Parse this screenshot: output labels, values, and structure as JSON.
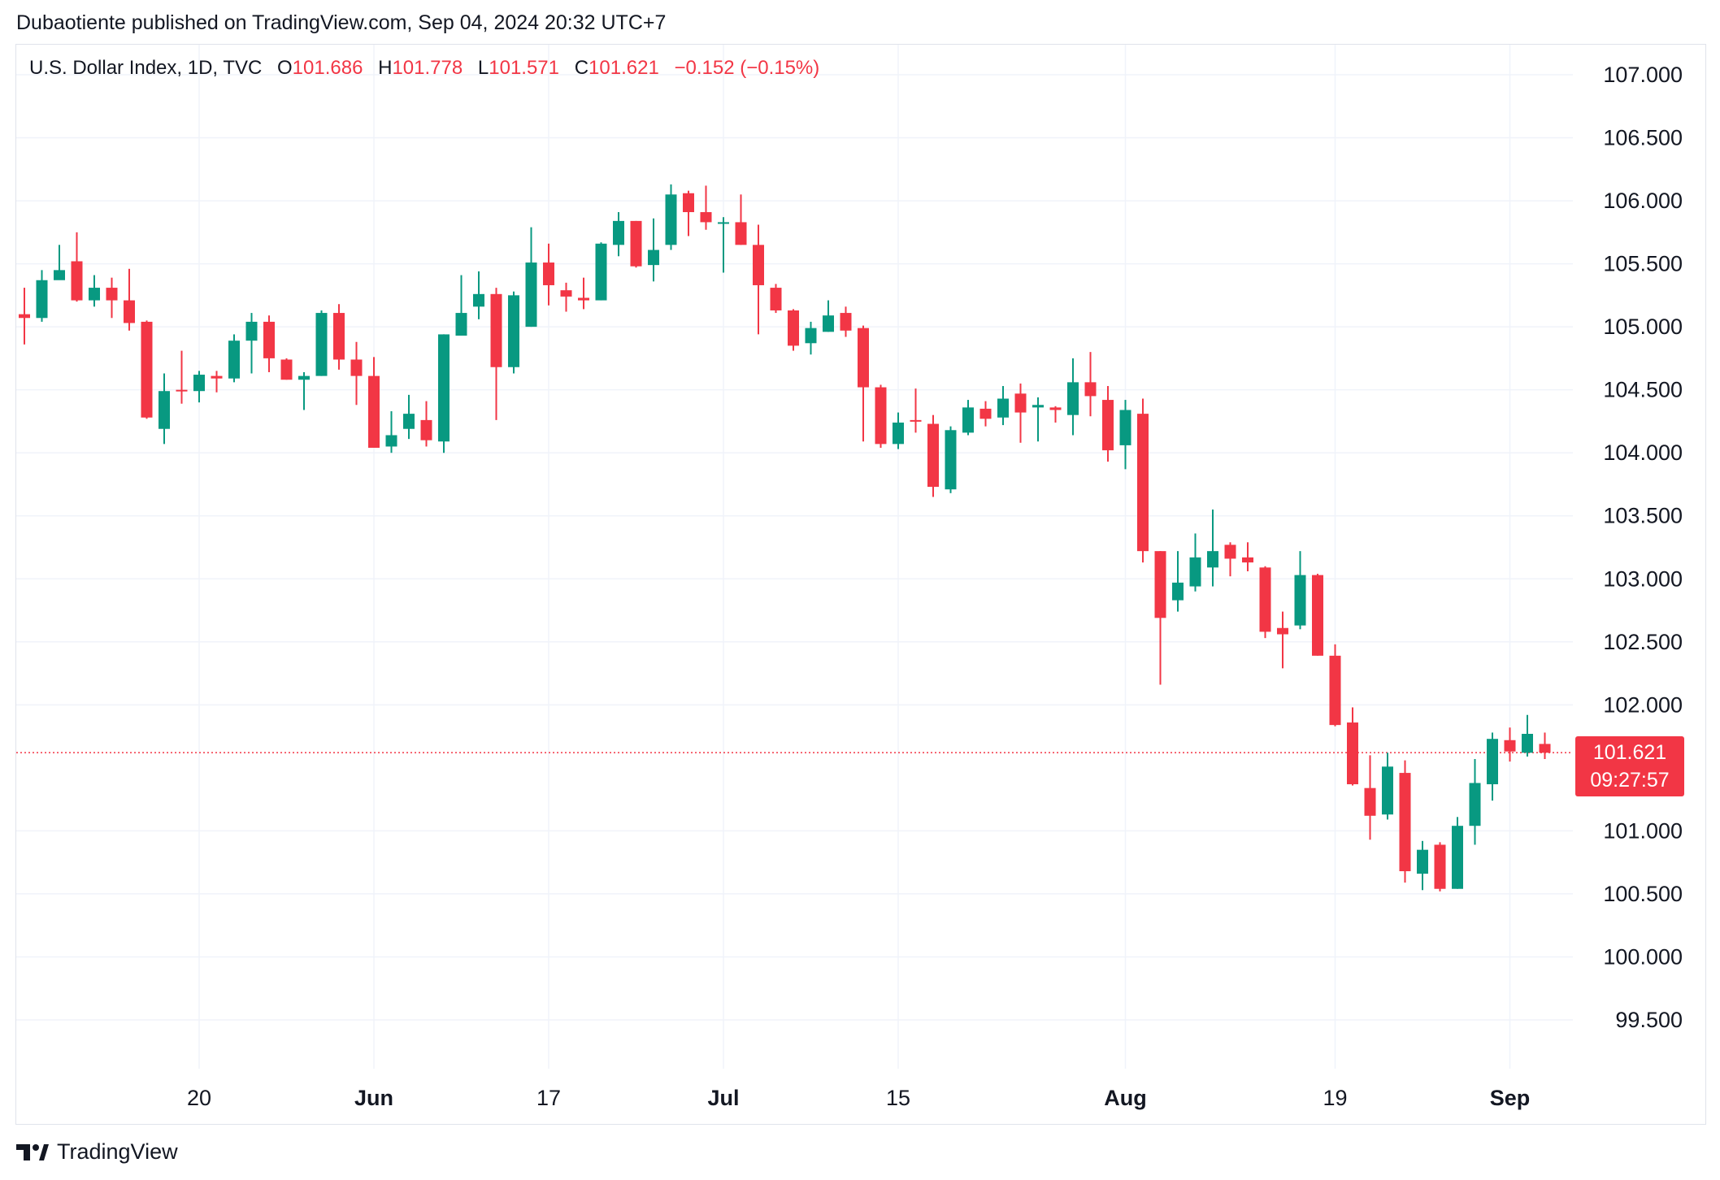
{
  "header": {
    "published_line": "Dubaotiente published on TradingView.com, Sep 04, 2024 20:32 UTC+7"
  },
  "legend": {
    "symbol": "U.S. Dollar Index, 1D, TVC",
    "open_label": "O",
    "open_value": "101.686",
    "high_label": "H",
    "high_value": "101.778",
    "low_label": "L",
    "low_value": "101.571",
    "close_label": "C",
    "close_value": "101.621",
    "change": "−0.152 (−0.15%)"
  },
  "price_tag": {
    "price": "101.621",
    "countdown": "09:27:57"
  },
  "footer": {
    "brand": "TradingView"
  },
  "colors": {
    "up": "#089981",
    "down": "#f23645",
    "grid": "#f0f3fa",
    "text": "#131722",
    "price_line": "#f23645"
  },
  "chart_data": {
    "type": "candlestick",
    "ylim": [
      99.05,
      107.25
    ],
    "y_ticks": [
      "107.000",
      "106.500",
      "106.000",
      "105.500",
      "105.000",
      "104.500",
      "104.000",
      "103.500",
      "103.000",
      "102.500",
      "102.000",
      "101.000",
      "100.500",
      "100.000",
      "99.500"
    ],
    "x_ticks": [
      {
        "label": "20",
        "index": 10,
        "bold": false
      },
      {
        "label": "Jun",
        "index": 20,
        "bold": true
      },
      {
        "label": "17",
        "index": 30,
        "bold": false
      },
      {
        "label": "Jul",
        "index": 40,
        "bold": true
      },
      {
        "label": "15",
        "index": 50,
        "bold": false
      },
      {
        "label": "Aug",
        "index": 63,
        "bold": true
      },
      {
        "label": "19",
        "index": 75,
        "bold": false
      },
      {
        "label": "Sep",
        "index": 85,
        "bold": true
      }
    ],
    "last_price": 101.621,
    "candles": [
      [
        105.1,
        105.07,
        105.31,
        104.86
      ],
      [
        105.07,
        105.37,
        105.45,
        105.04
      ],
      [
        105.37,
        105.45,
        105.65,
        105.4
      ],
      [
        105.52,
        105.21,
        105.75,
        105.2
      ],
      [
        105.21,
        105.31,
        105.41,
        105.16
      ],
      [
        105.31,
        105.21,
        105.39,
        105.07
      ],
      [
        105.21,
        105.03,
        105.46,
        104.97
      ],
      [
        105.04,
        104.28,
        105.05,
        104.27
      ],
      [
        104.19,
        104.49,
        104.63,
        104.07
      ],
      [
        104.5,
        104.49,
        104.81,
        104.39
      ],
      [
        104.49,
        104.62,
        104.65,
        104.4
      ],
      [
        104.61,
        104.59,
        104.65,
        104.48
      ],
      [
        104.59,
        104.89,
        104.94,
        104.56
      ],
      [
        104.89,
        105.04,
        105.11,
        104.63
      ],
      [
        105.04,
        104.75,
        105.09,
        104.64
      ],
      [
        104.74,
        104.58,
        104.75,
        104.58
      ],
      [
        104.58,
        104.61,
        104.64,
        104.34
      ],
      [
        104.61,
        105.11,
        105.13,
        104.61
      ],
      [
        105.11,
        104.74,
        105.18,
        104.66
      ],
      [
        104.74,
        104.61,
        104.88,
        104.38
      ],
      [
        104.61,
        104.04,
        104.76,
        104.04
      ],
      [
        104.05,
        104.14,
        104.33,
        104.0
      ],
      [
        104.19,
        104.31,
        104.46,
        104.11
      ],
      [
        104.26,
        104.1,
        104.41,
        104.05
      ],
      [
        104.09,
        104.94,
        104.94,
        104.0
      ],
      [
        104.93,
        105.11,
        105.41,
        104.93
      ],
      [
        105.16,
        105.26,
        105.44,
        105.06
      ],
      [
        105.26,
        104.68,
        105.31,
        104.26
      ],
      [
        104.68,
        105.25,
        105.28,
        104.63
      ],
      [
        105.0,
        105.51,
        105.79,
        105.0
      ],
      [
        105.51,
        105.33,
        105.66,
        105.17
      ],
      [
        105.29,
        105.24,
        105.35,
        105.12
      ],
      [
        105.23,
        105.21,
        105.39,
        105.14
      ],
      [
        105.21,
        105.66,
        105.67,
        105.21
      ],
      [
        105.65,
        105.84,
        105.91,
        105.56
      ],
      [
        105.84,
        105.48,
        105.84,
        105.47
      ],
      [
        105.49,
        105.61,
        105.86,
        105.36
      ],
      [
        105.65,
        106.05,
        106.13,
        105.61
      ],
      [
        106.06,
        105.91,
        106.08,
        105.72
      ],
      [
        105.91,
        105.83,
        106.12,
        105.77
      ],
      [
        105.82,
        105.83,
        105.87,
        105.43
      ],
      [
        105.83,
        105.65,
        106.05,
        105.65
      ],
      [
        105.65,
        105.33,
        105.81,
        104.94
      ],
      [
        105.31,
        105.13,
        105.34,
        105.11
      ],
      [
        105.13,
        104.85,
        105.14,
        104.81
      ],
      [
        104.87,
        104.99,
        105.04,
        104.78
      ],
      [
        104.96,
        105.09,
        105.21,
        104.96
      ],
      [
        105.11,
        104.97,
        105.16,
        104.92
      ],
      [
        104.99,
        104.52,
        105.01,
        104.09
      ],
      [
        104.52,
        104.07,
        104.54,
        104.04
      ],
      [
        104.07,
        104.24,
        104.32,
        104.03
      ],
      [
        104.26,
        104.25,
        104.51,
        104.16
      ],
      [
        104.23,
        103.73,
        104.3,
        103.65
      ],
      [
        103.71,
        104.18,
        104.21,
        103.68
      ],
      [
        104.16,
        104.36,
        104.42,
        104.14
      ],
      [
        104.35,
        104.27,
        104.41,
        104.21
      ],
      [
        104.28,
        104.43,
        104.53,
        104.22
      ],
      [
        104.47,
        104.32,
        104.55,
        104.08
      ],
      [
        104.36,
        104.38,
        104.44,
        104.09
      ],
      [
        104.36,
        104.34,
        104.37,
        104.24
      ],
      [
        104.3,
        104.56,
        104.75,
        104.14
      ],
      [
        104.56,
        104.45,
        104.8,
        104.29
      ],
      [
        104.42,
        104.02,
        104.53,
        103.93
      ],
      [
        104.06,
        104.34,
        104.42,
        103.87
      ],
      [
        104.31,
        103.22,
        104.43,
        103.13
      ],
      [
        103.22,
        102.69,
        103.22,
        102.16
      ],
      [
        102.83,
        102.97,
        103.22,
        102.74
      ],
      [
        102.94,
        103.17,
        103.36,
        102.9
      ],
      [
        103.09,
        103.22,
        103.55,
        102.94
      ],
      [
        103.27,
        103.16,
        103.29,
        103.02
      ],
      [
        103.17,
        103.13,
        103.29,
        103.06
      ],
      [
        103.09,
        102.58,
        103.1,
        102.53
      ],
      [
        102.61,
        102.56,
        102.74,
        102.29
      ],
      [
        102.63,
        103.03,
        103.22,
        102.6
      ],
      [
        103.03,
        102.39,
        103.04,
        102.39
      ],
      [
        102.39,
        101.84,
        102.48,
        101.83
      ],
      [
        101.86,
        101.37,
        101.98,
        101.36
      ],
      [
        101.34,
        101.12,
        101.6,
        100.93
      ],
      [
        101.13,
        101.51,
        101.62,
        101.09
      ],
      [
        101.46,
        100.68,
        101.56,
        100.59
      ],
      [
        100.66,
        100.85,
        100.92,
        100.53
      ],
      [
        100.89,
        100.54,
        100.91,
        100.52
      ],
      [
        100.54,
        101.04,
        101.11,
        100.54
      ],
      [
        101.04,
        101.38,
        101.57,
        100.89
      ],
      [
        101.37,
        101.73,
        101.78,
        101.24
      ],
      [
        101.72,
        101.63,
        101.82,
        101.55
      ],
      [
        101.62,
        101.77,
        101.92,
        101.59
      ],
      [
        101.69,
        101.62,
        101.78,
        101.57
      ]
    ]
  }
}
